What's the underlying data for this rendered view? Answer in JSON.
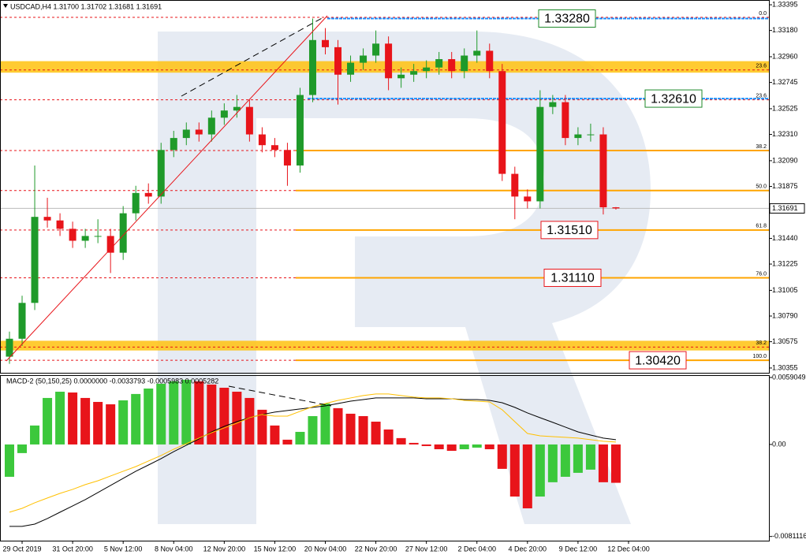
{
  "chart_data": [
    {
      "type": "candlestick",
      "title": "USDCAD,H4  1.31700 1.31702 1.31681 1.31691",
      "categories": [
        null,
        "29 Oct 2019",
        null,
        null,
        null,
        "31 Oct 20:00",
        null,
        null,
        null,
        "5 Nov 12:00",
        null,
        null,
        null,
        "8 Nov 04:00",
        null,
        null,
        null,
        "12 Nov 20:00",
        null,
        null,
        null,
        "15 Nov 12:00",
        null,
        null,
        null,
        "20 Nov 04:00",
        null,
        null,
        null,
        "22 Nov 20:00",
        null,
        null,
        null,
        "27 Nov 12:00",
        null,
        null,
        null,
        "2 Dec 04:00",
        null,
        null,
        null,
        "4 Dec 20:00",
        null,
        null,
        null,
        "9 Dec 12:00",
        null,
        null,
        null,
        "12 Dec 04:00"
      ],
      "open": [
        1.3045,
        1.306,
        1.309,
        1.3162,
        1.3159,
        1.3152,
        1.3142,
        1.3146,
        1.3146,
        1.3132,
        1.3165,
        1.3182,
        1.3179,
        1.3218,
        1.3228,
        1.3235,
        1.3231,
        1.3245,
        1.3251,
        1.3254,
        1.3231,
        1.3222,
        1.3218,
        1.3205,
        1.3264,
        1.331,
        1.3304,
        1.3281,
        1.3291,
        1.3297,
        1.3307,
        1.3278,
        1.3281,
        1.3284,
        1.3287,
        1.3294,
        1.3284,
        1.3297,
        1.3301,
        1.3284,
        1.3198,
        1.3179,
        1.3175,
        1.3254,
        1.3258,
        1.3228,
        1.3231,
        1.3231,
        1.317,
        null
      ],
      "high": [
        1.3066,
        1.3096,
        1.3205,
        1.3178,
        1.3165,
        1.3158,
        1.3152,
        1.316,
        1.3152,
        1.3171,
        1.3188,
        1.319,
        1.3224,
        1.3234,
        1.3241,
        1.3241,
        1.3251,
        1.3257,
        1.3264,
        1.326,
        1.3237,
        1.3228,
        1.3224,
        1.327,
        1.3328,
        1.332,
        1.331,
        1.3297,
        1.3303,
        1.3318,
        1.3313,
        1.3287,
        1.329,
        1.3293,
        1.33,
        1.33,
        1.3303,
        1.3318,
        1.3307,
        1.329,
        1.3204,
        1.3185,
        1.3268,
        1.3264,
        1.3264,
        1.3237,
        1.324,
        1.3237,
        1.31702,
        null
      ],
      "low": [
        1.3039,
        1.3054,
        1.3084,
        1.3153,
        1.3146,
        1.3136,
        1.3136,
        1.314,
        1.3115,
        1.3126,
        1.3159,
        1.3173,
        1.3173,
        1.3212,
        1.3222,
        1.3225,
        1.3225,
        1.3239,
        1.3245,
        1.3225,
        1.3216,
        1.3212,
        1.3188,
        1.3199,
        1.3258,
        1.3298,
        1.3256,
        1.3275,
        1.3285,
        1.3291,
        1.3268,
        1.327,
        1.3275,
        1.3278,
        1.3281,
        1.3278,
        1.3278,
        1.3291,
        1.3278,
        1.3192,
        1.316,
        1.3169,
        1.3169,
        1.3248,
        1.3222,
        1.3222,
        1.3225,
        1.3164,
        1.31681,
        null
      ],
      "close": [
        1.306,
        1.309,
        1.3162,
        1.3159,
        1.3152,
        1.3142,
        1.3146,
        1.3146,
        1.3132,
        1.3165,
        1.3182,
        1.3179,
        1.3218,
        1.3228,
        1.3235,
        1.3231,
        1.3245,
        1.3251,
        1.3254,
        1.3231,
        1.3222,
        1.3218,
        1.3205,
        1.3264,
        1.331,
        1.3304,
        1.3281,
        1.3291,
        1.3297,
        1.3307,
        1.3278,
        1.3281,
        1.3284,
        1.3287,
        1.3294,
        1.3284,
        1.3297,
        1.3301,
        1.3284,
        1.3198,
        1.3179,
        1.3175,
        1.3254,
        1.3258,
        1.3228,
        1.3231,
        1.3231,
        1.317,
        1.31691,
        null
      ],
      "up_color": "#1f9a2a",
      "down_color": "#e8141a",
      "ylim": [
        1.30315,
        1.33435
      ],
      "yticks": [
        1.33395,
        {
          "value": 1.3318,
          "label": "1.33180"
        },
        {
          "value": 1.3296,
          "label": "1.32960"
        },
        1.32745,
        1.32525,
        {
          "value": 1.3231,
          "label": "1.32310"
        },
        {
          "value": 1.3209,
          "label": "1.32090"
        },
        1.31875,
        {
          "value": 1.3144,
          "label": "1.31440"
        },
        1.31225,
        1.31005,
        {
          "value": 1.3079,
          "label": "1.30790"
        },
        1.30575,
        1.30355
      ],
      "last_price": 1.31691,
      "fibonacci": [
        {
          "label": "0.0",
          "price": 1.3329,
          "color": "#e8141a"
        },
        {
          "label": "23.6",
          "price": 1.3285,
          "color": "#e8141a"
        },
        {
          "label": "23.6",
          "price": 1.326,
          "color": "#e8141a"
        },
        {
          "label": "38.2",
          "price": 1.32175,
          "color": "#ffa500"
        },
        {
          "label": "50.0",
          "price": 1.3184,
          "color": "#ffa500"
        },
        {
          "label": "61.8",
          "price": 1.3151,
          "color": "#ffa500"
        },
        {
          "label": "76.0",
          "price": 1.3111,
          "color": "#ffa500"
        },
        {
          "label": "38.2",
          "price": 1.3053,
          "color": "#e8141a"
        },
        {
          "label": "100.0",
          "price": 1.3042,
          "color": "#ffa500"
        }
      ],
      "zones": [
        {
          "from": 1.3284,
          "to": 1.3291,
          "color": "#ffc20e"
        },
        {
          "from": 1.30515,
          "to": 1.3057,
          "color": "#ffc20e"
        }
      ],
      "targets": [
        {
          "value": 1.3328,
          "label": "1.33280",
          "color": "#1f8a2a"
        },
        {
          "value": 1.3261,
          "label": "1.32610",
          "color": "#1f8a2a"
        },
        {
          "value": 1.3151,
          "label": "1.31510",
          "color": "#e8141a"
        },
        {
          "value": 1.3111,
          "label": "1.31110",
          "color": "#e8141a"
        },
        {
          "value": 1.3042,
          "label": "1.30420",
          "color": "#e8141a"
        }
      ]
    },
    {
      "type": "macd",
      "title": "MACD-2 (50,150,25) 0.0000000 -0.0033793 -0.0005983 0.0005282",
      "histogram": {
        "up_color": "#3cc83c",
        "down_color": "#e8141a",
        "values": [
          -0.00285,
          -0.00076,
          0.00167,
          0.0041,
          0.00465,
          0.00458,
          0.0041,
          0.00375,
          0.00354,
          0.00389,
          0.00445,
          0.00493,
          0.00535,
          0.00556,
          0.0057,
          0.00556,
          0.00528,
          0.005,
          0.00465,
          0.0041,
          0.00306,
          0.00167,
          0.00042,
          0.00111,
          0.0025,
          0.00361,
          0.0032,
          0.00271,
          0.0025,
          0.00201,
          0.00132,
          0.00056,
          0.00014,
          -0.00014,
          -0.00042,
          -0.00056,
          -0.00042,
          -0.00028,
          -0.00042,
          -0.00215,
          -0.00459,
          -0.00563,
          -0.00459,
          -0.00333,
          -0.00285,
          -0.0025,
          -0.00222,
          -0.00333,
          -0.0033793,
          null
        ]
      },
      "series": [
        {
          "color": "#000000",
          "values": [
            -0.00722,
            -0.00722,
            -0.00702,
            -0.00653,
            -0.00597,
            -0.00542,
            -0.00486,
            -0.00424,
            -0.00361,
            -0.00299,
            -0.00236,
            -0.00181,
            -0.00125,
            -0.00063,
            -7e-05,
            0.00049,
            0.00111,
            0.0016,
            0.00201,
            0.00236,
            0.00264,
            0.00285,
            0.00299,
            0.00313,
            0.00327,
            0.0034,
            0.00361,
            0.00382,
            0.00396,
            0.0041,
            0.0041,
            0.0041,
            0.0041,
            0.00403,
            0.00403,
            0.00403,
            0.00396,
            0.00396,
            0.00389,
            0.00368,
            0.00327,
            0.00278,
            0.00236,
            0.00195,
            0.00153,
            0.00111,
            0.00083,
            0.00056,
            0.00042,
            null
          ]
        },
        {
          "color": "#ffc000",
          "values": [
            -0.00597,
            -0.00563,
            -0.00514,
            -0.00472,
            -0.00431,
            -0.00396,
            -0.00354,
            -0.0032,
            -0.00278,
            -0.00236,
            -0.00195,
            -0.00146,
            -0.00097,
            -0.00042,
            7e-05,
            0.00056,
            0.00104,
            0.00146,
            0.00188,
            0.00236,
            0.00264,
            0.0025,
            0.0025,
            0.00292,
            0.00333,
            0.00361,
            0.00389,
            0.0041,
            0.00431,
            0.00445,
            0.00445,
            0.00431,
            0.00417,
            0.0041,
            0.0041,
            0.00403,
            0.00389,
            0.00382,
            0.00375,
            0.00306,
            0.00201,
            0.00097,
            0.00076,
            0.00069,
            0.00063,
            0.00056,
            0.00042,
            0.00028,
            0.00021,
            null
          ]
        }
      ],
      "ylim": [
        -0.00848,
        0.00611
      ],
      "yticks": [
        0.0059049,
        {
          "value": 0,
          "label": "0.00"
        },
        -0.0081116
      ]
    }
  ]
}
